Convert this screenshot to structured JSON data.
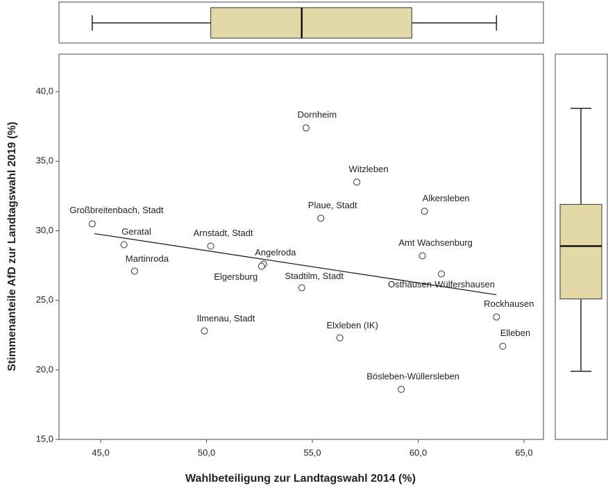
{
  "chart_data": {
    "type": "scatter",
    "x_label": "Wahlbeteiligung zur Landtagswahl 2014 (%)",
    "y_label": "Stimmenanteile AfD zur Landtagswahl 2019 (%)",
    "labels": [
      "Dornheim",
      "Witzleben",
      "Großbreitenbach, Stadt",
      "Alkersleben",
      "Plaue, Stadt",
      "Geratal",
      "Arnstadt, Stadt",
      "Amt Wachsenburg",
      "Angelroda",
      "Elgersburg",
      "Martinroda",
      "Osthausen-Wülfershausen",
      "Stadtilm, Stadt",
      "Rockhausen",
      "Ilmenau, Stadt",
      "Elxleben (IK)",
      "Elleben",
      "Bösleben-Wüllersleben"
    ],
    "x": [
      54.7,
      57.1,
      44.6,
      60.3,
      55.4,
      46.1,
      50.2,
      60.2,
      52.7,
      52.6,
      46.6,
      61.1,
      54.5,
      63.7,
      49.9,
      56.3,
      64.0,
      59.2
    ],
    "y": [
      37.4,
      33.5,
      30.5,
      31.4,
      30.9,
      29.0,
      28.9,
      28.2,
      27.6,
      27.45,
      27.1,
      26.9,
      25.9,
      23.8,
      22.8,
      22.3,
      21.7,
      18.6
    ],
    "trend_line": {
      "x": [
        44.7,
        63.7
      ],
      "y": [
        29.8,
        25.4
      ]
    },
    "x_box": {
      "min": 44.6,
      "q1": 50.2,
      "median": 54.5,
      "q3": 59.7,
      "max": 63.7
    },
    "y_box": {
      "min": 19.9,
      "q1": 25.1,
      "median": 28.9,
      "q3": 31.9,
      "max": 38.8
    },
    "box_color": "#e3d9a6",
    "xlim": [
      43.03,
      65.92
    ],
    "ylim": [
      15,
      42.7
    ],
    "xticks": [
      {
        "value": 45,
        "label": "45,0"
      },
      {
        "value": 50,
        "label": "50,0"
      },
      {
        "value": 55,
        "label": "55,0"
      },
      {
        "value": 60,
        "label": "60,0"
      },
      {
        "value": 65,
        "label": "65,0"
      }
    ],
    "yticks": [
      {
        "value": 15,
        "label": "15,0"
      },
      {
        "value": 20,
        "label": "20,0"
      },
      {
        "value": 25,
        "label": "25,0"
      },
      {
        "value": 30,
        "label": "30,0"
      },
      {
        "value": 35,
        "label": "35,0"
      },
      {
        "value": 40,
        "label": "40,0"
      }
    ]
  }
}
